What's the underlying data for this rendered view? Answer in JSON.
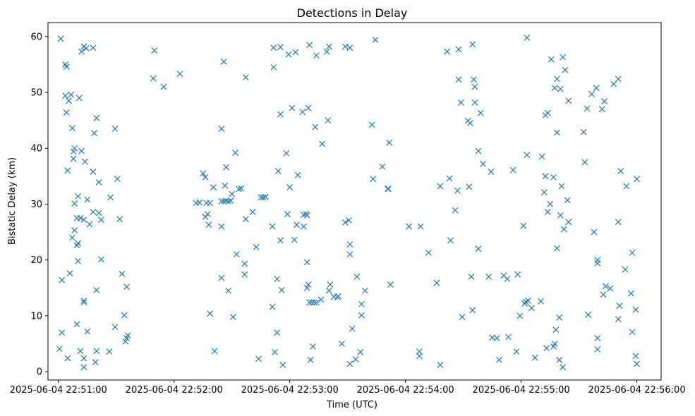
{
  "chart_data": {
    "type": "scatter",
    "title": "Detections in Delay",
    "xlabel": "Time (UTC)",
    "ylabel": "Bistatic Delay (km)",
    "marker": "x",
    "color": "#1f77b4",
    "x_unit": "minutes since 2025-06-04 22:51:00",
    "xlim": [
      -0.09,
      5.21
    ],
    "ylim": [
      -1.5,
      62.5
    ],
    "x_ticks": [
      {
        "value": 0,
        "label": "2025-06-04 22:51:00"
      },
      {
        "value": 1,
        "label": "2025-06-04 22:52:00"
      },
      {
        "value": 2,
        "label": "2025-06-04 22:53:00"
      },
      {
        "value": 3,
        "label": "2025-06-04 22:54:00"
      },
      {
        "value": 4,
        "label": "2025-06-04 22:55:00"
      },
      {
        "value": 5,
        "label": "2025-06-04 22:56:00"
      }
    ],
    "y_ticks": [
      {
        "value": 0,
        "label": "0"
      },
      {
        "value": 10,
        "label": "10"
      },
      {
        "value": 20,
        "label": "20"
      },
      {
        "value": 30,
        "label": "30"
      },
      {
        "value": 40,
        "label": "40"
      },
      {
        "value": 50,
        "label": "50"
      },
      {
        "value": 60,
        "label": "60"
      }
    ],
    "points": [
      [
        0.02,
        59.6
      ],
      [
        0.06,
        55.0
      ],
      [
        0.07,
        54.6
      ],
      [
        0.06,
        49.4
      ],
      [
        0.11,
        49.6
      ],
      [
        0.09,
        48.5
      ],
      [
        0.07,
        46.4
      ],
      [
        0.2,
        57.3
      ],
      [
        0.24,
        57.9
      ],
      [
        0.3,
        58.0
      ],
      [
        0.22,
        58.2
      ],
      [
        0.83,
        57.5
      ],
      [
        0.82,
        52.5
      ],
      [
        0.91,
        51.0
      ],
      [
        1.05,
        53.3
      ],
      [
        0.18,
        49.0
      ],
      [
        0.2,
        39.5
      ],
      [
        0.23,
        37.6
      ],
      [
        0.14,
        40.0
      ],
      [
        0.22,
        12.4
      ],
      [
        0.22,
        12.7
      ],
      [
        0.25,
        7.2
      ],
      [
        0.19,
        3.7
      ],
      [
        0.16,
        8.5
      ],
      [
        0.17,
        19.8
      ],
      [
        0.16,
        22.6
      ],
      [
        0.17,
        31.4
      ],
      [
        0.08,
        36.0
      ],
      [
        0.12,
        24.0
      ],
      [
        0.14,
        25.3
      ],
      [
        0.19,
        27.5
      ],
      [
        0.22,
        27.2
      ],
      [
        0.27,
        26.4
      ],
      [
        0.3,
        28.6
      ],
      [
        0.3,
        35.8
      ],
      [
        0.31,
        42.7
      ],
      [
        0.33,
        45.4
      ],
      [
        0.35,
        33.9
      ],
      [
        0.35,
        28.4
      ],
      [
        0.37,
        27.2
      ],
      [
        0.25,
        30.8
      ],
      [
        0.01,
        4.1
      ],
      [
        0.03,
        7.0
      ],
      [
        0.03,
        16.4
      ],
      [
        0.1,
        17.6
      ],
      [
        0.08,
        2.4
      ],
      [
        0.22,
        0.8
      ],
      [
        0.32,
        1.7
      ],
      [
        0.33,
        3.7
      ],
      [
        0.44,
        3.6
      ],
      [
        0.33,
        14.6
      ],
      [
        0.37,
        20.1
      ],
      [
        0.45,
        31.2
      ],
      [
        0.51,
        34.5
      ],
      [
        0.49,
        43.5
      ],
      [
        0.53,
        27.3
      ],
      [
        0.55,
        17.5
      ],
      [
        0.57,
        10.1
      ],
      [
        0.58,
        5.4
      ],
      [
        0.59,
        6.0
      ],
      [
        0.6,
        6.5
      ],
      [
        0.59,
        15.2
      ],
      [
        0.49,
        8.0
      ],
      [
        0.22,
        2.4
      ],
      [
        0.12,
        43.6
      ],
      [
        0.13,
        38.1
      ],
      [
        0.13,
        39.4
      ],
      [
        0.14,
        30.1
      ],
      [
        0.16,
        27.5
      ],
      [
        0.17,
        23.0
      ],
      [
        1.19,
        30.2
      ],
      [
        1.22,
        30.3
      ],
      [
        1.25,
        35.5
      ],
      [
        1.27,
        34.8
      ],
      [
        1.28,
        30.2
      ],
      [
        1.31,
        30.2
      ],
      [
        1.27,
        27.7
      ],
      [
        1.29,
        28.2
      ],
      [
        1.3,
        26.3
      ],
      [
        1.34,
        33.0
      ],
      [
        1.41,
        30.5
      ],
      [
        1.43,
        30.5
      ],
      [
        1.45,
        30.6
      ],
      [
        1.47,
        30.5
      ],
      [
        1.49,
        30.6
      ],
      [
        1.5,
        31.8
      ],
      [
        1.44,
        33.3
      ],
      [
        1.45,
        36.6
      ],
      [
        1.43,
        55.5
      ],
      [
        1.41,
        43.5
      ],
      [
        1.53,
        39.2
      ],
      [
        1.56,
        32.7
      ],
      [
        1.58,
        32.8
      ],
      [
        1.41,
        26.0
      ],
      [
        1.47,
        14.5
      ],
      [
        1.41,
        16.8
      ],
      [
        1.51,
        9.8
      ],
      [
        1.54,
        21.0
      ],
      [
        1.31,
        10.4
      ],
      [
        1.35,
        3.7
      ],
      [
        1.61,
        19.3
      ],
      [
        1.61,
        17.4
      ],
      [
        1.62,
        27.3
      ],
      [
        1.68,
        28.6
      ],
      [
        1.71,
        22.3
      ],
      [
        1.75,
        31.2
      ],
      [
        1.77,
        31.2
      ],
      [
        1.79,
        31.3
      ],
      [
        1.62,
        52.7
      ],
      [
        1.73,
        2.3
      ],
      [
        1.85,
        11.6
      ],
      [
        1.87,
        3.5
      ],
      [
        1.89,
        7.0
      ],
      [
        1.89,
        16.6
      ],
      [
        1.92,
        23.5
      ],
      [
        1.93,
        14.6
      ],
      [
        1.94,
        1.2
      ],
      [
        1.9,
        35.9
      ],
      [
        1.85,
        26.0
      ],
      [
        1.92,
        46.1
      ],
      [
        1.97,
        39.1
      ],
      [
        1.98,
        28.2
      ],
      [
        2.06,
        26.3
      ],
      [
        2.04,
        23.6
      ],
      [
        2.07,
        35.2
      ],
      [
        2.12,
        28.1
      ],
      [
        2.14,
        28.2
      ],
      [
        2.12,
        26.0
      ],
      [
        2.15,
        28.0
      ],
      [
        2.15,
        19.6
      ],
      [
        2.15,
        15.0
      ],
      [
        2.16,
        15.6
      ],
      [
        2.17,
        12.4
      ],
      [
        2.19,
        12.4
      ],
      [
        2.21,
        12.4
      ],
      [
        2.23,
        12.4
      ],
      [
        2.2,
        4.5
      ],
      [
        2.18,
        2.1
      ],
      [
        2.27,
        12.9
      ],
      [
        2.34,
        14.5
      ],
      [
        2.35,
        15.6
      ],
      [
        2.38,
        13.4
      ],
      [
        2.41,
        13.3
      ],
      [
        2.42,
        13.5
      ],
      [
        2.45,
        5.0
      ],
      [
        2.54,
        7.7
      ],
      [
        2.52,
        1.4
      ],
      [
        2.57,
        2.2
      ],
      [
        2.61,
        3.5
      ],
      [
        2.58,
        17.0
      ],
      [
        2.62,
        12.1
      ],
      [
        2.62,
        10.1
      ],
      [
        2.65,
        14.5
      ],
      [
        2.52,
        22.8
      ],
      [
        2.52,
        21.0
      ],
      [
        2.48,
        26.7
      ],
      [
        2.51,
        27.1
      ],
      [
        2.28,
        40.8
      ],
      [
        2.33,
        45.0
      ],
      [
        2.0,
        33.0
      ],
      [
        2.02,
        47.2
      ],
      [
        2.11,
        46.5
      ],
      [
        2.16,
        47.2
      ],
      [
        2.22,
        43.8
      ],
      [
        1.92,
        58.1
      ],
      [
        1.86,
        54.5
      ],
      [
        1.86,
        58.0
      ],
      [
        1.99,
        56.8
      ],
      [
        2.05,
        57.2
      ],
      [
        2.17,
        58.5
      ],
      [
        2.23,
        56.6
      ],
      [
        2.32,
        57.3
      ],
      [
        2.34,
        58.2
      ],
      [
        2.48,
        58.2
      ],
      [
        2.52,
        58.0
      ],
      [
        2.74,
        59.4
      ],
      [
        2.71,
        44.2
      ],
      [
        2.72,
        34.5
      ],
      [
        2.8,
        36.7
      ],
      [
        2.85,
        32.8
      ],
      [
        2.85,
        32.7
      ],
      [
        2.86,
        41.0
      ],
      [
        2.87,
        15.6
      ],
      [
        3.03,
        26.0
      ],
      [
        3.13,
        26.0
      ],
      [
        3.2,
        21.3
      ],
      [
        3.12,
        3.6
      ],
      [
        3.12,
        2.8
      ],
      [
        3.27,
        15.9
      ],
      [
        3.3,
        1.2
      ],
      [
        3.3,
        33.2
      ],
      [
        3.38,
        34.6
      ],
      [
        3.43,
        28.9
      ],
      [
        3.45,
        32.4
      ],
      [
        3.39,
        23.5
      ],
      [
        3.46,
        52.3
      ],
      [
        3.48,
        48.2
      ],
      [
        3.49,
        9.8
      ],
      [
        3.57,
        17.0
      ],
      [
        3.58,
        11.0
      ],
      [
        3.54,
        44.9
      ],
      [
        3.56,
        44.5
      ],
      [
        3.55,
        33.1
      ],
      [
        3.63,
        22.0
      ],
      [
        3.63,
        39.5
      ],
      [
        3.67,
        37.2
      ],
      [
        3.74,
        35.8
      ],
      [
        3.72,
        17.0
      ],
      [
        3.75,
        6.1
      ],
      [
        3.79,
        6.0
      ],
      [
        3.85,
        17.2
      ],
      [
        3.88,
        16.6
      ],
      [
        3.81,
        2.1
      ],
      [
        3.96,
        3.6
      ],
      [
        3.99,
        10.0
      ],
      [
        4.03,
        12.2
      ],
      [
        4.06,
        12.7
      ],
      [
        4.04,
        12.5
      ],
      [
        4.09,
        11.4
      ],
      [
        4.12,
        2.5
      ],
      [
        4.17,
        12.6
      ],
      [
        4.22,
        4.2
      ],
      [
        4.28,
        4.5
      ],
      [
        4.29,
        5.0
      ],
      [
        4.3,
        7.5
      ],
      [
        4.31,
        22.1
      ],
      [
        4.33,
        9.7
      ],
      [
        4.33,
        2.1
      ],
      [
        4.36,
        0.8
      ],
      [
        4.18,
        38.5
      ],
      [
        4.21,
        35.0
      ],
      [
        4.25,
        30.0
      ],
      [
        4.28,
        34.8
      ],
      [
        4.31,
        42.8
      ],
      [
        4.35,
        33.2
      ],
      [
        4.34,
        28.0
      ],
      [
        4.37,
        25.5
      ],
      [
        4.41,
        26.8
      ],
      [
        4.4,
        30.7
      ],
      [
        4.23,
        46.3
      ],
      [
        4.21,
        45.9
      ],
      [
        4.29,
        50.8
      ],
      [
        4.31,
        52.4
      ],
      [
        4.34,
        50.6
      ],
      [
        4.26,
        55.9
      ],
      [
        4.38,
        54.0
      ],
      [
        4.36,
        56.3
      ],
      [
        4.41,
        48.5
      ],
      [
        4.05,
        59.8
      ],
      [
        4.05,
        38.8
      ],
      [
        4.02,
        26.1
      ],
      [
        3.93,
        36.1
      ],
      [
        3.97,
        17.4
      ],
      [
        3.89,
        6.2
      ],
      [
        4.23,
        28.6
      ],
      [
        4.2,
        32.1
      ],
      [
        4.55,
        37.5
      ],
      [
        4.54,
        42.9
      ],
      [
        4.57,
        47.1
      ],
      [
        4.61,
        49.7
      ],
      [
        4.65,
        50.8
      ],
      [
        4.7,
        47.0
      ],
      [
        4.72,
        48.4
      ],
      [
        4.8,
        51.5
      ],
      [
        4.84,
        52.4
      ],
      [
        4.84,
        26.8
      ],
      [
        4.86,
        35.9
      ],
      [
        4.91,
        33.2
      ],
      [
        4.63,
        25.0
      ],
      [
        4.66,
        20.0
      ],
      [
        4.66,
        19.4
      ],
      [
        4.58,
        10.2
      ],
      [
        4.71,
        13.8
      ],
      [
        4.73,
        15.3
      ],
      [
        4.77,
        14.9
      ],
      [
        4.85,
        11.8
      ],
      [
        4.84,
        9.4
      ],
      [
        4.9,
        18.3
      ],
      [
        4.96,
        21.3
      ],
      [
        4.95,
        14.0
      ],
      [
        4.96,
        7.1
      ],
      [
        4.66,
        6.0
      ],
      [
        4.66,
        4.0
      ],
      [
        4.99,
        11.1
      ],
      [
        4.99,
        2.8
      ],
      [
        5.0,
        1.4
      ],
      [
        5.0,
        34.5
      ],
      [
        3.36,
        57.3
      ],
      [
        3.46,
        57.7
      ],
      [
        3.58,
        58.6
      ],
      [
        3.59,
        52.3
      ],
      [
        3.6,
        51.0
      ],
      [
        3.65,
        46.3
      ],
      [
        3.6,
        48.2
      ]
    ]
  }
}
